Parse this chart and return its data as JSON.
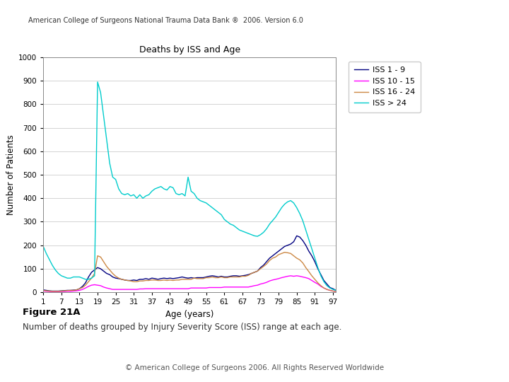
{
  "title": "Deaths by ISS and Age",
  "xlabel": "Age (years)",
  "ylabel": "Number of Patients",
  "header": "American College of Surgeons National Trauma Data Bank ®  2006. Version 6.0",
  "footer": "© American College of Surgeons 2006. All Rights Reserved Worldwide",
  "figure_label": "Figure 21A",
  "figure_caption": "Number of deaths grouped by Injury Severity Score (ISS) range at each age.",
  "x_ticks": [
    1,
    7,
    13,
    19,
    25,
    31,
    37,
    43,
    49,
    55,
    61,
    67,
    73,
    79,
    85,
    91,
    97
  ],
  "ylim": [
    0,
    1000
  ],
  "y_ticks": [
    0,
    100,
    200,
    300,
    400,
    500,
    600,
    700,
    800,
    900,
    1000
  ],
  "series": {
    "ISS 1 - 9": {
      "color": "#000080",
      "linewidth": 1.0,
      "data": {
        "ages": [
          1,
          2,
          3,
          4,
          5,
          6,
          7,
          8,
          9,
          10,
          11,
          12,
          13,
          14,
          15,
          16,
          17,
          18,
          19,
          20,
          21,
          22,
          23,
          24,
          25,
          26,
          27,
          28,
          29,
          30,
          31,
          32,
          33,
          34,
          35,
          36,
          37,
          38,
          39,
          40,
          41,
          42,
          43,
          44,
          45,
          46,
          47,
          48,
          49,
          50,
          51,
          52,
          53,
          54,
          55,
          56,
          57,
          58,
          59,
          60,
          61,
          62,
          63,
          64,
          65,
          66,
          67,
          68,
          69,
          70,
          71,
          72,
          73,
          74,
          75,
          76,
          77,
          78,
          79,
          80,
          81,
          82,
          83,
          84,
          85,
          86,
          87,
          88,
          89,
          90,
          91,
          92,
          93,
          94,
          95,
          96,
          97,
          98
        ],
        "values": [
          10,
          8,
          6,
          5,
          5,
          5,
          6,
          7,
          8,
          8,
          9,
          10,
          15,
          25,
          40,
          65,
          85,
          95,
          105,
          100,
          90,
          80,
          75,
          65,
          60,
          58,
          55,
          52,
          50,
          50,
          52,
          50,
          55,
          55,
          58,
          55,
          60,
          58,
          55,
          58,
          60,
          58,
          60,
          58,
          60,
          62,
          65,
          62,
          60,
          62,
          60,
          62,
          62,
          62,
          65,
          68,
          70,
          68,
          65,
          68,
          65,
          65,
          68,
          70,
          70,
          68,
          70,
          72,
          75,
          80,
          85,
          90,
          105,
          115,
          130,
          145,
          155,
          165,
          175,
          185,
          195,
          200,
          205,
          215,
          240,
          235,
          220,
          200,
          175,
          155,
          130,
          100,
          75,
          50,
          35,
          20,
          15,
          8
        ]
      }
    },
    "ISS 10 - 15": {
      "color": "#FF00FF",
      "linewidth": 1.0,
      "data": {
        "ages": [
          1,
          2,
          3,
          4,
          5,
          6,
          7,
          8,
          9,
          10,
          11,
          12,
          13,
          14,
          15,
          16,
          17,
          18,
          19,
          20,
          21,
          22,
          23,
          24,
          25,
          26,
          27,
          28,
          29,
          30,
          31,
          32,
          33,
          34,
          35,
          36,
          37,
          38,
          39,
          40,
          41,
          42,
          43,
          44,
          45,
          46,
          47,
          48,
          49,
          50,
          51,
          52,
          53,
          54,
          55,
          56,
          57,
          58,
          59,
          60,
          61,
          62,
          63,
          64,
          65,
          66,
          67,
          68,
          69,
          70,
          71,
          72,
          73,
          74,
          75,
          76,
          77,
          78,
          79,
          80,
          81,
          82,
          83,
          84,
          85,
          86,
          87,
          88,
          89,
          90,
          91,
          92,
          93,
          94,
          95,
          96,
          97,
          98
        ],
        "values": [
          5,
          4,
          3,
          2,
          2,
          2,
          3,
          3,
          4,
          4,
          5,
          6,
          8,
          12,
          18,
          25,
          30,
          32,
          30,
          28,
          22,
          18,
          15,
          12,
          12,
          12,
          12,
          12,
          12,
          12,
          12,
          12,
          14,
          14,
          15,
          15,
          15,
          15,
          15,
          15,
          15,
          15,
          15,
          15,
          15,
          15,
          15,
          15,
          15,
          18,
          18,
          18,
          18,
          18,
          18,
          20,
          20,
          20,
          20,
          20,
          22,
          22,
          22,
          22,
          22,
          22,
          22,
          22,
          22,
          25,
          28,
          30,
          35,
          38,
          42,
          48,
          52,
          55,
          58,
          62,
          65,
          68,
          70,
          68,
          70,
          68,
          65,
          62,
          58,
          50,
          42,
          35,
          25,
          18,
          12,
          8,
          5,
          3
        ]
      }
    },
    "ISS 16 - 24": {
      "color": "#CC8844",
      "linewidth": 1.0,
      "data": {
        "ages": [
          1,
          2,
          3,
          4,
          5,
          6,
          7,
          8,
          9,
          10,
          11,
          12,
          13,
          14,
          15,
          16,
          17,
          18,
          19,
          20,
          21,
          22,
          23,
          24,
          25,
          26,
          27,
          28,
          29,
          30,
          31,
          32,
          33,
          34,
          35,
          36,
          37,
          38,
          39,
          40,
          41,
          42,
          43,
          44,
          45,
          46,
          47,
          48,
          49,
          50,
          51,
          52,
          53,
          54,
          55,
          56,
          57,
          58,
          59,
          60,
          61,
          62,
          63,
          64,
          65,
          66,
          67,
          68,
          69,
          70,
          71,
          72,
          73,
          74,
          75,
          76,
          77,
          78,
          79,
          80,
          81,
          82,
          83,
          84,
          85,
          86,
          87,
          88,
          89,
          90,
          91,
          92,
          93,
          94,
          95,
          96,
          97,
          98
        ],
        "values": [
          8,
          6,
          5,
          4,
          4,
          4,
          5,
          6,
          7,
          8,
          8,
          10,
          15,
          20,
          30,
          45,
          60,
          80,
          155,
          150,
          130,
          110,
          95,
          80,
          68,
          60,
          55,
          52,
          50,
          48,
          45,
          45,
          48,
          48,
          50,
          50,
          52,
          52,
          50,
          50,
          52,
          50,
          52,
          50,
          52,
          52,
          55,
          55,
          55,
          55,
          60,
          58,
          58,
          58,
          62,
          62,
          65,
          62,
          62,
          65,
          62,
          62,
          65,
          65,
          65,
          65,
          68,
          68,
          72,
          80,
          85,
          90,
          100,
          110,
          120,
          135,
          145,
          150,
          160,
          165,
          170,
          168,
          165,
          155,
          145,
          138,
          125,
          105,
          88,
          70,
          55,
          40,
          28,
          18,
          12,
          8,
          5,
          3
        ]
      }
    },
    "ISS > 24": {
      "color": "#00CCCC",
      "linewidth": 1.0,
      "data": {
        "ages": [
          1,
          2,
          3,
          4,
          5,
          6,
          7,
          8,
          9,
          10,
          11,
          12,
          13,
          14,
          15,
          16,
          17,
          18,
          19,
          20,
          21,
          22,
          23,
          24,
          25,
          26,
          27,
          28,
          29,
          30,
          31,
          32,
          33,
          34,
          35,
          36,
          37,
          38,
          39,
          40,
          41,
          42,
          43,
          44,
          45,
          46,
          47,
          48,
          49,
          50,
          51,
          52,
          53,
          54,
          55,
          56,
          57,
          58,
          59,
          60,
          61,
          62,
          63,
          64,
          65,
          66,
          67,
          68,
          69,
          70,
          71,
          72,
          73,
          74,
          75,
          76,
          77,
          78,
          79,
          80,
          81,
          82,
          83,
          84,
          85,
          86,
          87,
          88,
          89,
          90,
          91,
          92,
          93,
          94,
          95,
          96,
          97,
          98
        ],
        "values": [
          195,
          165,
          140,
          115,
          95,
          80,
          70,
          65,
          60,
          60,
          65,
          65,
          65,
          60,
          55,
          55,
          60,
          70,
          895,
          850,
          750,
          650,
          550,
          490,
          480,
          440,
          420,
          415,
          420,
          410,
          415,
          400,
          415,
          400,
          410,
          415,
          430,
          440,
          445,
          450,
          440,
          435,
          450,
          445,
          420,
          415,
          420,
          410,
          490,
          430,
          420,
          400,
          390,
          385,
          380,
          370,
          360,
          350,
          340,
          330,
          310,
          300,
          290,
          285,
          275,
          265,
          260,
          255,
          250,
          245,
          240,
          238,
          245,
          255,
          270,
          290,
          305,
          320,
          340,
          360,
          375,
          385,
          390,
          380,
          360,
          335,
          305,
          265,
          225,
          185,
          145,
          105,
          70,
          45,
          28,
          18,
          12,
          8
        ]
      }
    }
  },
  "fig_bg": "#ffffff",
  "chart_bg": "#ffffff",
  "chart_border_bg": "#f0f0f0",
  "grid_color": "#cccccc",
  "legend_border_color": "#cccccc"
}
